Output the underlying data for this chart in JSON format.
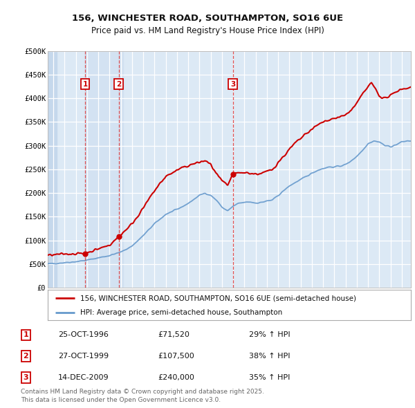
{
  "title_line1": "156, WINCHESTER ROAD, SOUTHAMPTON, SO16 6UE",
  "title_line2": "Price paid vs. HM Land Registry's House Price Index (HPI)",
  "background_color": "#dce9f5",
  "fig_color": "#ffffff",
  "grid_color": "#ffffff",
  "red_line_color": "#cc0000",
  "blue_line_color": "#6699cc",
  "legend_red": "156, WINCHESTER ROAD, SOUTHAMPTON, SO16 6UE (semi-detached house)",
  "legend_blue": "HPI: Average price, semi-detached house, Southampton",
  "footer": "Contains HM Land Registry data © Crown copyright and database right 2025.\nThis data is licensed under the Open Government Licence v3.0.",
  "xmin": 1993.5,
  "xmax": 2025.8,
  "ymin": 0,
  "ymax": 500000,
  "yticks": [
    0,
    50000,
    100000,
    150000,
    200000,
    250000,
    300000,
    350000,
    400000,
    450000,
    500000
  ],
  "ytick_labels": [
    "£0",
    "£50K",
    "£100K",
    "£150K",
    "£200K",
    "£250K",
    "£300K",
    "£350K",
    "£400K",
    "£450K",
    "£500K"
  ],
  "xticks": [
    1994,
    1995,
    1996,
    1997,
    1998,
    1999,
    2000,
    2001,
    2002,
    2003,
    2004,
    2005,
    2006,
    2007,
    2008,
    2009,
    2010,
    2011,
    2012,
    2013,
    2014,
    2015,
    2016,
    2017,
    2018,
    2019,
    2020,
    2021,
    2022,
    2023,
    2024,
    2025
  ],
  "sale_points": [
    {
      "date_num": 1996.82,
      "price": 71520,
      "label": "1"
    },
    {
      "date_num": 1999.82,
      "price": 107500,
      "label": "2"
    },
    {
      "date_num": 2009.96,
      "price": 240000,
      "label": "3"
    }
  ],
  "table_rows": [
    [
      "1",
      "25-OCT-1996",
      "£71,520",
      "29% ↑ HPI"
    ],
    [
      "2",
      "27-OCT-1999",
      "£107,500",
      "38% ↑ HPI"
    ],
    [
      "3",
      "14-DEC-2009",
      "£240,000",
      "35% ↑ HPI"
    ]
  ],
  "hpi_keypoints": [
    [
      1993.5,
      50000
    ],
    [
      1994.0,
      51000
    ],
    [
      1995.0,
      53000
    ],
    [
      1996.0,
      55000
    ],
    [
      1997.0,
      58000
    ],
    [
      1998.0,
      63000
    ],
    [
      1999.0,
      68000
    ],
    [
      2000.0,
      75000
    ],
    [
      2001.0,
      88000
    ],
    [
      2002.0,
      110000
    ],
    [
      2003.0,
      135000
    ],
    [
      2004.0,
      155000
    ],
    [
      2005.0,
      165000
    ],
    [
      2006.0,
      178000
    ],
    [
      2007.0,
      195000
    ],
    [
      2007.5,
      200000
    ],
    [
      2008.0,
      195000
    ],
    [
      2008.5,
      185000
    ],
    [
      2009.0,
      170000
    ],
    [
      2009.5,
      162000
    ],
    [
      2010.0,
      172000
    ],
    [
      2010.5,
      178000
    ],
    [
      2011.0,
      180000
    ],
    [
      2011.5,
      181000
    ],
    [
      2012.0,
      179000
    ],
    [
      2012.5,
      180000
    ],
    [
      2013.0,
      183000
    ],
    [
      2013.5,
      185000
    ],
    [
      2014.0,
      195000
    ],
    [
      2014.5,
      205000
    ],
    [
      2015.0,
      215000
    ],
    [
      2015.5,
      222000
    ],
    [
      2016.0,
      228000
    ],
    [
      2016.5,
      235000
    ],
    [
      2017.0,
      242000
    ],
    [
      2017.5,
      248000
    ],
    [
      2018.0,
      252000
    ],
    [
      2018.5,
      255000
    ],
    [
      2019.0,
      255000
    ],
    [
      2019.5,
      257000
    ],
    [
      2020.0,
      260000
    ],
    [
      2020.5,
      268000
    ],
    [
      2021.0,
      278000
    ],
    [
      2021.5,
      290000
    ],
    [
      2022.0,
      305000
    ],
    [
      2022.5,
      310000
    ],
    [
      2023.0,
      308000
    ],
    [
      2023.5,
      300000
    ],
    [
      2024.0,
      298000
    ],
    [
      2024.5,
      302000
    ],
    [
      2025.0,
      308000
    ],
    [
      2025.5,
      310000
    ]
  ],
  "red_keypoints": [
    [
      1993.5,
      68000
    ],
    [
      1994.0,
      69000
    ],
    [
      1995.0,
      71000
    ],
    [
      1996.0,
      72000
    ],
    [
      1996.82,
      71520
    ],
    [
      1997.0,
      74000
    ],
    [
      1998.0,
      82000
    ],
    [
      1999.0,
      90000
    ],
    [
      1999.82,
      107500
    ],
    [
      2000.0,
      112000
    ],
    [
      2001.0,
      135000
    ],
    [
      2002.0,
      168000
    ],
    [
      2003.0,
      205000
    ],
    [
      2004.0,
      235000
    ],
    [
      2005.0,
      248000
    ],
    [
      2006.0,
      258000
    ],
    [
      2007.0,
      265000
    ],
    [
      2007.5,
      268000
    ],
    [
      2008.0,
      260000
    ],
    [
      2008.5,
      240000
    ],
    [
      2009.0,
      225000
    ],
    [
      2009.5,
      215000
    ],
    [
      2009.96,
      240000
    ],
    [
      2010.0,
      240000
    ],
    [
      2010.5,
      242000
    ],
    [
      2011.0,
      243000
    ],
    [
      2011.5,
      242000
    ],
    [
      2012.0,
      240000
    ],
    [
      2012.5,
      241000
    ],
    [
      2013.0,
      245000
    ],
    [
      2013.5,
      250000
    ],
    [
      2014.0,
      265000
    ],
    [
      2014.5,
      278000
    ],
    [
      2015.0,
      292000
    ],
    [
      2015.5,
      305000
    ],
    [
      2016.0,
      315000
    ],
    [
      2016.5,
      325000
    ],
    [
      2017.0,
      335000
    ],
    [
      2017.5,
      343000
    ],
    [
      2018.0,
      350000
    ],
    [
      2018.5,
      355000
    ],
    [
      2019.0,
      358000
    ],
    [
      2019.5,
      360000
    ],
    [
      2020.0,
      365000
    ],
    [
      2020.5,
      375000
    ],
    [
      2021.0,
      390000
    ],
    [
      2021.5,
      408000
    ],
    [
      2022.0,
      425000
    ],
    [
      2022.3,
      432000
    ],
    [
      2022.7,
      418000
    ],
    [
      2023.0,
      405000
    ],
    [
      2023.5,
      400000
    ],
    [
      2024.0,
      405000
    ],
    [
      2024.5,
      415000
    ],
    [
      2025.0,
      420000
    ],
    [
      2025.5,
      422000
    ]
  ]
}
